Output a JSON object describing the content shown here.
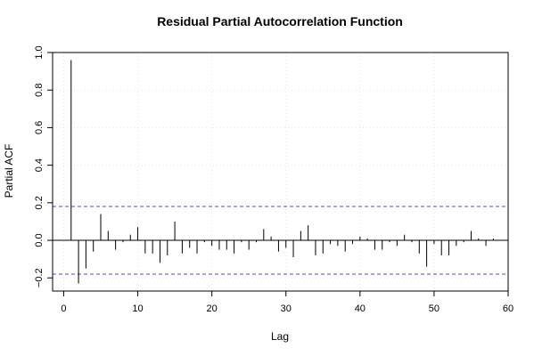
{
  "chart_data": {
    "type": "bar",
    "title": "Residual Partial Autocorrelation Function",
    "xlabel": "Lag",
    "ylabel": "Partial ACF",
    "xlim": [
      -1.5,
      60
    ],
    "ylim": [
      -0.27,
      1.0
    ],
    "xticks": [
      0,
      10,
      20,
      30,
      40,
      50,
      60
    ],
    "yticks": [
      -0.2,
      0.0,
      0.2,
      0.4,
      0.6,
      0.8,
      1.0
    ],
    "ytick_labels": [
      "−0.2",
      "0.0",
      "0.2",
      "0.4",
      "0.6",
      "0.8",
      "1.0"
    ],
    "confidence_bound": 0.18,
    "grid": true,
    "lags": [
      1,
      2,
      3,
      4,
      5,
      6,
      7,
      8,
      9,
      10,
      11,
      12,
      13,
      14,
      15,
      16,
      17,
      18,
      19,
      20,
      21,
      22,
      23,
      24,
      25,
      26,
      27,
      28,
      29,
      30,
      31,
      32,
      33,
      34,
      35,
      36,
      37,
      38,
      39,
      40,
      41,
      42,
      43,
      44,
      45,
      46,
      47,
      48,
      49,
      50,
      51,
      52,
      53,
      54,
      55,
      56,
      57,
      58
    ],
    "values": [
      0.96,
      -0.23,
      -0.15,
      -0.06,
      0.14,
      0.05,
      -0.05,
      -0.01,
      0.03,
      0.07,
      -0.07,
      -0.07,
      -0.12,
      -0.08,
      0.1,
      -0.07,
      -0.04,
      -0.07,
      -0.01,
      -0.03,
      -0.05,
      -0.05,
      -0.07,
      -0.01,
      -0.05,
      -0.01,
      0.06,
      0.02,
      -0.06,
      -0.04,
      -0.09,
      0.05,
      0.08,
      -0.08,
      -0.07,
      -0.02,
      -0.03,
      -0.06,
      -0.02,
      0.02,
      0.01,
      -0.05,
      -0.05,
      -0.01,
      -0.03,
      0.03,
      -0.01,
      -0.07,
      -0.14,
      -0.02,
      -0.08,
      -0.08,
      -0.03,
      -0.01,
      0.05,
      0.01,
      -0.03,
      0.01
    ],
    "colors": {
      "bars": "#000000",
      "confidence_line": "#4d4dcc",
      "grid": "#e6e6e6",
      "axis": "#000000"
    }
  }
}
